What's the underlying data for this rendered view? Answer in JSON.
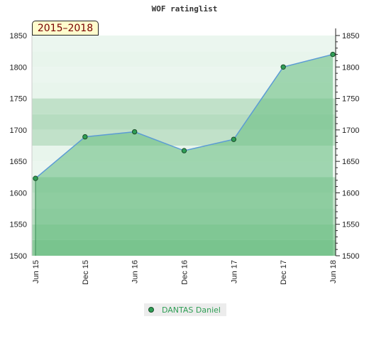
{
  "header": {
    "title": "WOF ratinglist",
    "period": "2015–2018"
  },
  "legend": {
    "label": "DANTAS Daniel"
  },
  "colors": {
    "area_fill": "#6dbf85",
    "line": "#5b9bd5",
    "marker": "#2f9e55",
    "marker_stroke": "#1a4d2a",
    "band_light": "#e8f5ec",
    "band_mid": "#b6dcc0",
    "band_dark": "#8ccb9c"
  },
  "chart_data": {
    "type": "area",
    "title": "WOF ratinglist",
    "x": [
      "Jun 15",
      "Dec 15",
      "Jun 16",
      "Dec 16",
      "Jun 17",
      "Dec 17",
      "Jun 18"
    ],
    "series": [
      {
        "name": "DANTAS Daniel",
        "values": [
          1623,
          1689,
          1697,
          1667,
          1685,
          1800,
          1820
        ]
      }
    ],
    "ylim": [
      1500,
      1850
    ],
    "yticks": [
      1500,
      1550,
      1600,
      1650,
      1700,
      1750,
      1800,
      1850
    ],
    "axes": "left-and-right",
    "legend_position": "bottom-center",
    "grid": false
  }
}
